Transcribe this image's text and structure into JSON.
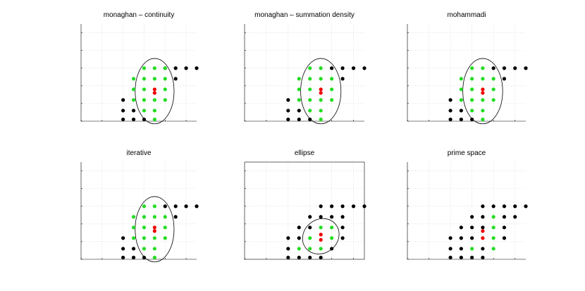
{
  "colors": {
    "black": "#000000",
    "green": "#22dd22",
    "red": "#ee0000",
    "circle": "#000000"
  },
  "chart_data": [
    {
      "type": "scatter",
      "title": "monaghan – continuity",
      "box": false,
      "xlim": [
        0,
        11
      ],
      "ylim": [
        0,
        5.5
      ],
      "grid": true,
      "kernel": {
        "shape": "circle",
        "center": [
          7,
          1.7
        ],
        "rx": 1.85,
        "ry": 1.85
      },
      "red": [
        [
          7,
          1.6
        ],
        [
          7,
          1.8
        ]
      ],
      "green": [
        [
          6,
          0.6
        ],
        [
          7,
          0.6
        ],
        [
          5,
          1.2
        ],
        [
          6,
          1.2
        ],
        [
          7,
          1.2
        ],
        [
          8,
          1.2
        ],
        [
          5,
          1.8
        ],
        [
          6,
          1.8
        ],
        [
          8,
          1.8
        ],
        [
          5,
          2.4
        ],
        [
          6,
          2.4
        ],
        [
          7,
          2.4
        ],
        [
          8,
          2.4
        ],
        [
          6,
          3.0
        ],
        [
          7,
          3.0
        ],
        [
          8,
          3.0
        ],
        [
          7,
          0.1
        ]
      ],
      "black": [
        [
          4,
          0.1
        ],
        [
          5,
          0.1
        ],
        [
          6,
          0.1
        ],
        [
          4,
          0.6
        ],
        [
          5,
          0.6
        ],
        [
          4,
          1.2
        ],
        [
          9,
          2.4
        ],
        [
          8,
          3.0
        ],
        [
          9,
          3.0
        ],
        [
          10,
          3.0
        ],
        [
          11,
          3.0
        ]
      ]
    },
    {
      "type": "scatter",
      "title": "monaghan – summation density",
      "box": false,
      "xlim": [
        0,
        11
      ],
      "ylim": [
        0,
        5.5
      ],
      "grid": true,
      "kernel": {
        "shape": "circle",
        "center": [
          7,
          1.7
        ],
        "rx": 1.85,
        "ry": 1.85
      },
      "red": [
        [
          7,
          1.6
        ],
        [
          7,
          1.8
        ]
      ],
      "green": [
        [
          6,
          0.6
        ],
        [
          7,
          0.6
        ],
        [
          5,
          1.2
        ],
        [
          6,
          1.2
        ],
        [
          7,
          1.2
        ],
        [
          8,
          1.2
        ],
        [
          5,
          1.8
        ],
        [
          6,
          1.8
        ],
        [
          8,
          1.8
        ],
        [
          5,
          2.4
        ],
        [
          6,
          2.4
        ],
        [
          7,
          2.4
        ],
        [
          8,
          2.4
        ],
        [
          6,
          3.0
        ],
        [
          7,
          3.0
        ],
        [
          7,
          0.1
        ]
      ],
      "black": [
        [
          4,
          0.1
        ],
        [
          5,
          0.1
        ],
        [
          6,
          0.1
        ],
        [
          4,
          0.6
        ],
        [
          5,
          0.6
        ],
        [
          4,
          1.2
        ],
        [
          9,
          2.4
        ],
        [
          8,
          3.0
        ],
        [
          9,
          3.0
        ],
        [
          10,
          3.0
        ],
        [
          11,
          3.0
        ]
      ]
    },
    {
      "type": "scatter",
      "title": "mohammadi",
      "box": false,
      "xlim": [
        0,
        11
      ],
      "ylim": [
        0,
        5.5
      ],
      "grid": true,
      "kernel": {
        "shape": "circle",
        "center": [
          7,
          1.7
        ],
        "rx": 1.85,
        "ry": 1.85
      },
      "red": [
        [
          7,
          1.6
        ],
        [
          7,
          1.8
        ]
      ],
      "green": [
        [
          6,
          0.6
        ],
        [
          7,
          0.6
        ],
        [
          5,
          1.2
        ],
        [
          6,
          1.2
        ],
        [
          7,
          1.2
        ],
        [
          8,
          1.2
        ],
        [
          5,
          1.8
        ],
        [
          6,
          1.8
        ],
        [
          8,
          1.8
        ],
        [
          5,
          2.4
        ],
        [
          6,
          2.4
        ],
        [
          7,
          2.4
        ],
        [
          8,
          2.4
        ],
        [
          6,
          3.0
        ],
        [
          7,
          3.0
        ],
        [
          7,
          0.1
        ]
      ],
      "black": [
        [
          4,
          0.1
        ],
        [
          5,
          0.1
        ],
        [
          6,
          0.1
        ],
        [
          4,
          0.6
        ],
        [
          5,
          0.6
        ],
        [
          4,
          1.2
        ],
        [
          9,
          2.4
        ],
        [
          8,
          3.0
        ],
        [
          9,
          3.0
        ],
        [
          10,
          3.0
        ],
        [
          11,
          3.0
        ]
      ]
    },
    {
      "type": "scatter",
      "title": "iterative",
      "box": false,
      "xlim": [
        0,
        11
      ],
      "ylim": [
        0,
        5.5
      ],
      "grid": true,
      "kernel": {
        "shape": "circle",
        "center": [
          7,
          1.7
        ],
        "rx": 1.85,
        "ry": 1.85
      },
      "red": [
        [
          7,
          1.6
        ],
        [
          7,
          1.8
        ]
      ],
      "green": [
        [
          6,
          0.6
        ],
        [
          7,
          0.6
        ],
        [
          5,
          1.2
        ],
        [
          6,
          1.2
        ],
        [
          7,
          1.2
        ],
        [
          8,
          1.2
        ],
        [
          5,
          1.8
        ],
        [
          6,
          1.8
        ],
        [
          8,
          1.8
        ],
        [
          5,
          2.4
        ],
        [
          6,
          2.4
        ],
        [
          7,
          2.4
        ],
        [
          8,
          2.4
        ],
        [
          6,
          3.0
        ],
        [
          7,
          3.0
        ],
        [
          7,
          0.1
        ]
      ],
      "black": [
        [
          4,
          0.1
        ],
        [
          5,
          0.1
        ],
        [
          6,
          0.1
        ],
        [
          4,
          0.6
        ],
        [
          5,
          0.6
        ],
        [
          4,
          1.2
        ],
        [
          9,
          2.4
        ],
        [
          8,
          3.0
        ],
        [
          9,
          3.0
        ],
        [
          10,
          3.0
        ],
        [
          11,
          3.0
        ]
      ]
    },
    {
      "type": "scatter",
      "title": "ellipse",
      "box": true,
      "xlim": [
        0,
        11
      ],
      "ylim": [
        0,
        5.5
      ],
      "grid": true,
      "kernel": {
        "shape": "ellipse",
        "center": [
          7,
          1.3
        ],
        "rx": 1.75,
        "ry": 0.95,
        "angle": 38
      },
      "red": [
        [
          7,
          1.1
        ],
        [
          7,
          1.4
        ]
      ],
      "green": [
        [
          5,
          0.6
        ],
        [
          6,
          0.6
        ],
        [
          7,
          0.6
        ],
        [
          6,
          1.2
        ],
        [
          8,
          1.2
        ],
        [
          7,
          1.8
        ],
        [
          8,
          1.8
        ]
      ],
      "black": [
        [
          4,
          0.1
        ],
        [
          5,
          0.1
        ],
        [
          6,
          0.1
        ],
        [
          7,
          0.1
        ],
        [
          4,
          0.6
        ],
        [
          8,
          0.6
        ],
        [
          4,
          1.2
        ],
        [
          5,
          1.2
        ],
        [
          9,
          1.2
        ],
        [
          5,
          1.8
        ],
        [
          6,
          1.8
        ],
        [
          9,
          1.8
        ],
        [
          6,
          2.4
        ],
        [
          7,
          2.4
        ],
        [
          8,
          2.4
        ],
        [
          9,
          2.4
        ],
        [
          7,
          3.0
        ],
        [
          8,
          3.0
        ],
        [
          9,
          3.0
        ],
        [
          10,
          3.0
        ],
        [
          11,
          3.0
        ]
      ]
    },
    {
      "type": "scatter",
      "title": "prime space",
      "box": false,
      "xlim": [
        0,
        11
      ],
      "ylim": [
        0,
        5.5
      ],
      "grid": true,
      "kernel": null,
      "red": [
        [
          7,
          1.2
        ],
        [
          7,
          1.6
        ]
      ],
      "green": [
        [
          6,
          0.6
        ],
        [
          8,
          0.6
        ],
        [
          8,
          1.2
        ],
        [
          8,
          1.8
        ],
        [
          8,
          2.4
        ]
      ],
      "black": [
        [
          4,
          0.1
        ],
        [
          5,
          0.1
        ],
        [
          6,
          0.1
        ],
        [
          7,
          0.1
        ],
        [
          4,
          0.6
        ],
        [
          5,
          0.6
        ],
        [
          7,
          0.6
        ],
        [
          4,
          1.2
        ],
        [
          5,
          1.2
        ],
        [
          6,
          1.2
        ],
        [
          9,
          1.2
        ],
        [
          5,
          1.8
        ],
        [
          6,
          1.8
        ],
        [
          7,
          1.8
        ],
        [
          9,
          1.8
        ],
        [
          6,
          2.4
        ],
        [
          7,
          2.4
        ],
        [
          9,
          2.4
        ],
        [
          10,
          2.4
        ],
        [
          7,
          3.0
        ],
        [
          8,
          3.0
        ],
        [
          9,
          3.0
        ],
        [
          10,
          3.0
        ],
        [
          11,
          3.0
        ]
      ]
    }
  ]
}
